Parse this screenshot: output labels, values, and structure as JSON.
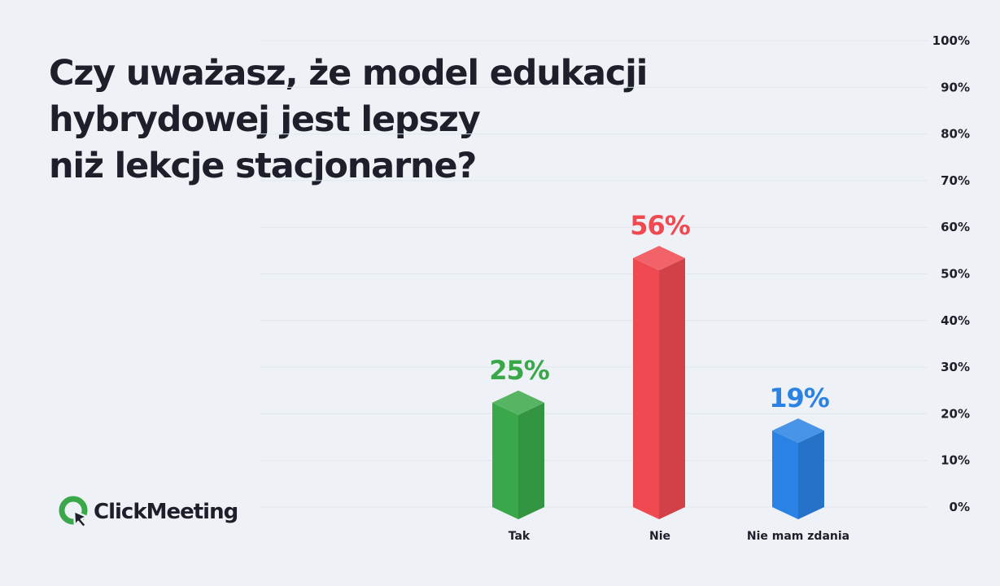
{
  "title_lines": [
    "Czy uważasz, że model edukacji",
    "hybrydowej jest lepszy",
    "niż lekcje stacjonarne?"
  ],
  "brand": {
    "name": "ClickMeeting",
    "logo_icon": "clickmeeting-logo-icon",
    "logo_color": "#3aa84a"
  },
  "chart_data": {
    "type": "bar",
    "title": "Czy uważasz, że model edukacji hybrydowej jest lepszy niż lekcje stacjonarne?",
    "categories": [
      "Tak",
      "Nie",
      "Nie mam zdania"
    ],
    "values": [
      25,
      56,
      19
    ],
    "value_labels": [
      "25%",
      "56%",
      "19%"
    ],
    "colors": [
      "#3aa84a",
      "#ef4a51",
      "#2a82e4"
    ],
    "ylim": [
      0,
      100
    ],
    "y_ticks": [
      0,
      10,
      20,
      30,
      40,
      50,
      60,
      70,
      80,
      90,
      100
    ],
    "y_tick_labels": [
      "0%",
      "10%",
      "20%",
      "30%",
      "40%",
      "50%",
      "60%",
      "70%",
      "80%",
      "90%",
      "100%"
    ],
    "y_axis_side": "right",
    "grid": true,
    "bar_style": "3d-prism"
  }
}
